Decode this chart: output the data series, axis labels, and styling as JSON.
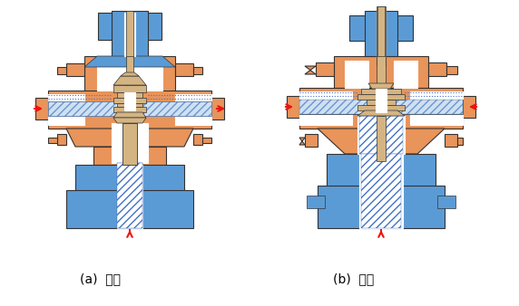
{
  "label_a": "(a)  分流",
  "label_b": "(b)  合流",
  "bg_color": "#ffffff",
  "orange": "#E8945A",
  "blue": "#5B9BD5",
  "blue_dark": "#4472C4",
  "tan": "#D4B483",
  "red": "#EE1111",
  "edge": "#333333",
  "label_fontsize": 10
}
